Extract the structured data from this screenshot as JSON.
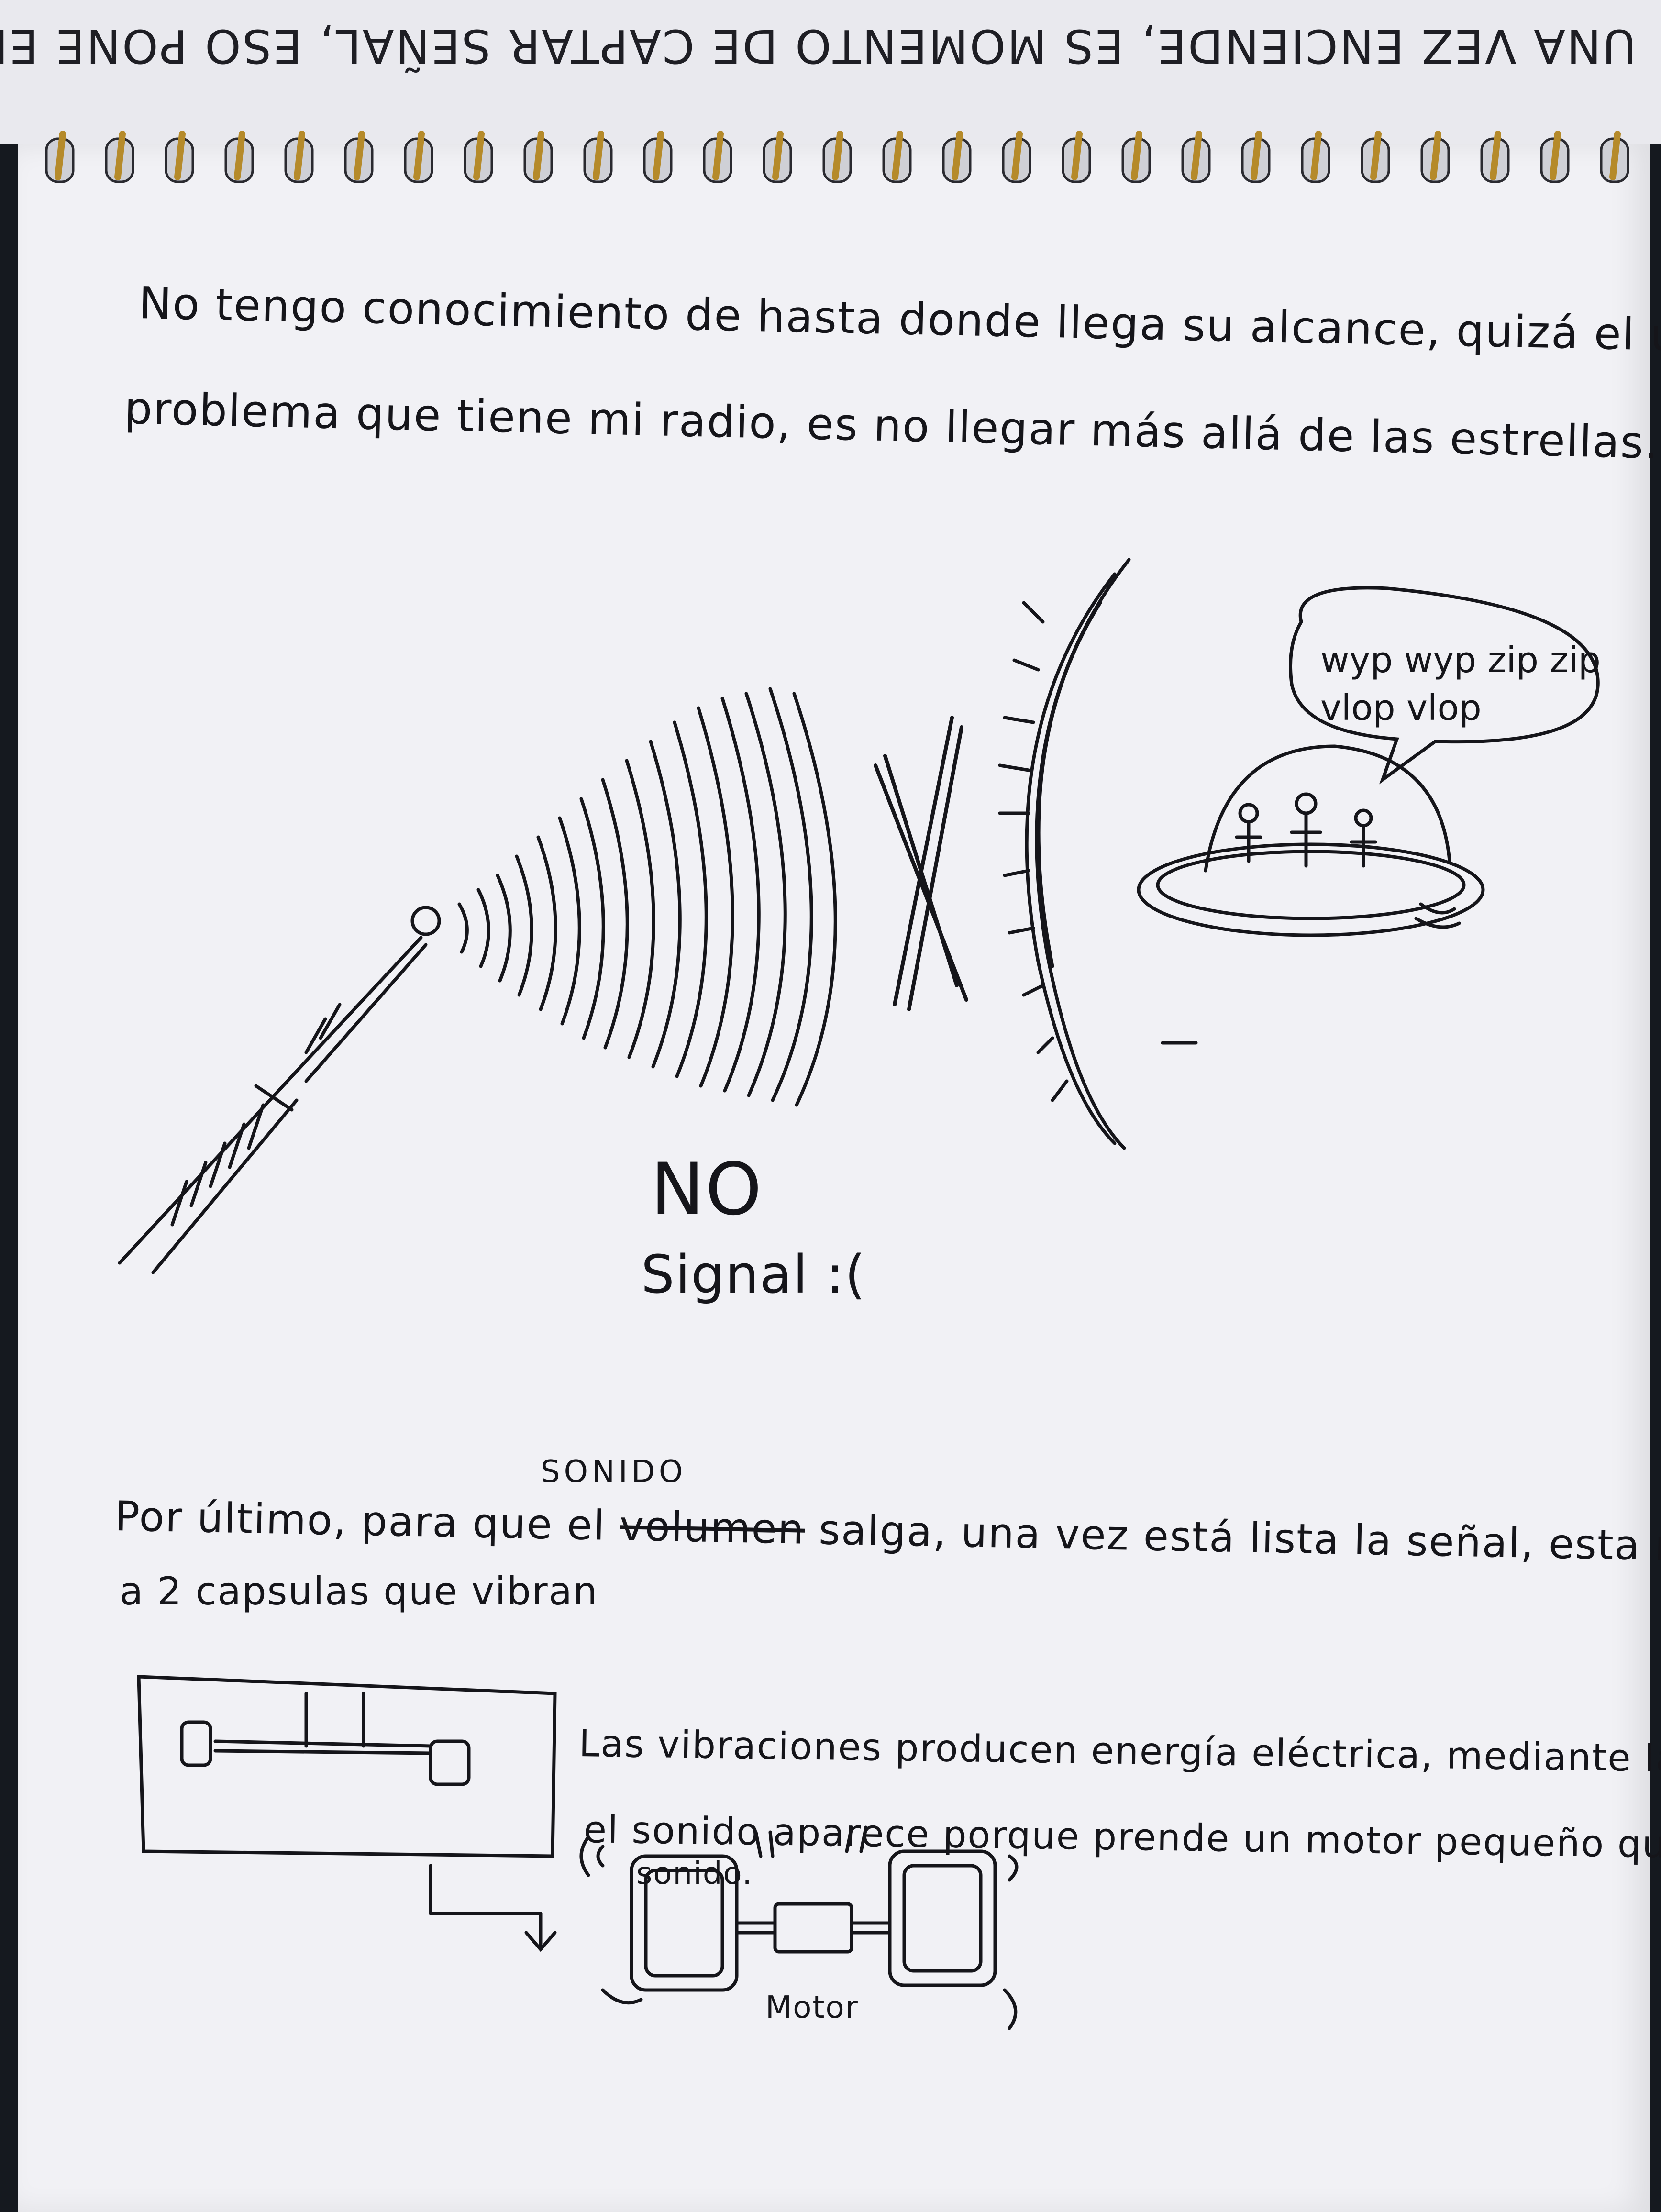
{
  "top_page_upside_down_text": "UNA VEZ ENCIENDE, ES MOMENTO DE CAPTAR SEÑAL, ESO PONE EN MOD",
  "paragraph_1": {
    "line_1": "No tengo conocimiento de hasta donde llega su alcance, quizá el único",
    "line_2": "problema que tiene mi radio, es no llegar más allá de las estrellas."
  },
  "illustration_1": {
    "speech_bubble_line_1": "wyp wyp zip zip",
    "speech_bubble_line_2": "vlop vlop",
    "no_signal_line_1": "NO",
    "no_signal_line_2": "Signal :("
  },
  "paragraph_2": {
    "inserted_word": "SONIDO",
    "line_1_before": "Por último, para que el ",
    "struck_word": "volumen",
    "line_1_after": " salga, una vez está lista la señal, esta manda un impulso",
    "line_2": "a 2 capsulas que vibran"
  },
  "illustration_2": {
    "caption_line_1": "Las vibraciones producen energía eléctrica, mediante la cual",
    "caption_line_2": "el sonido aparece porque prende un motor pequeño que genera el",
    "caption_line_3": "sonido.",
    "motor_label": "Motor"
  }
}
